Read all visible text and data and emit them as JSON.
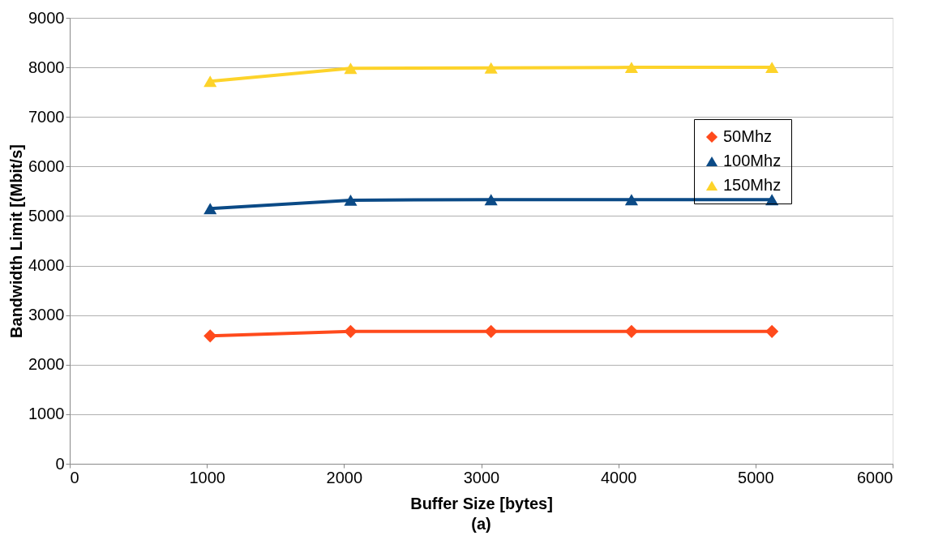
{
  "chart_data": {
    "type": "line",
    "xlabel": "Buffer Size [bytes]",
    "ylabel": "Bandwidth Limit [(Mbit/s]",
    "annotations": [
      "(a)"
    ],
    "x": [
      1024,
      2048,
      3072,
      4096,
      5120
    ],
    "series": [
      {
        "name": "50Mhz",
        "color": "#ff4a1c",
        "marker": "diamond",
        "values": [
          2580,
          2670,
          2670,
          2670,
          2670
        ]
      },
      {
        "name": "100Mhz",
        "color": "#0b4a86",
        "marker": "triangle",
        "values": [
          5150,
          5320,
          5330,
          5330,
          5330
        ]
      },
      {
        "name": "150Mhz",
        "color": "#fdd32a",
        "marker": "triangle",
        "values": [
          7720,
          7980,
          7990,
          8000,
          8000
        ]
      }
    ],
    "xlim": [
      0,
      6000
    ],
    "xticks": [
      0,
      1000,
      2000,
      3000,
      4000,
      5000,
      6000
    ],
    "ylim": [
      0,
      9000
    ],
    "yticks": [
      0,
      1000,
      2000,
      3000,
      4000,
      5000,
      6000,
      7000,
      8000,
      9000
    ],
    "grid": "y",
    "legend": "top right",
    "line_style": "solid"
  }
}
